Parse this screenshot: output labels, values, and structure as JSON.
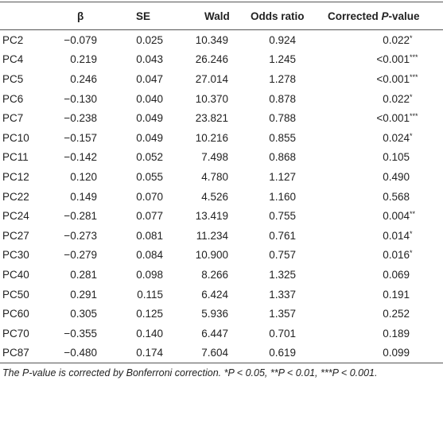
{
  "table": {
    "header": [
      "β",
      "SE",
      "Wald",
      "Odds ratio",
      [
        "Corrected ",
        "P",
        "-value"
      ]
    ],
    "rows": [
      [
        "PC2",
        "−0.079",
        "0.025",
        "10.349",
        "0.924",
        {
          "value": "0.022",
          "stars": "*"
        }
      ],
      [
        "PC4",
        "0.219",
        "0.043",
        "26.246",
        "1.245",
        {
          "value": "<0.001",
          "stars": "***"
        }
      ],
      [
        "PC5",
        "0.246",
        "0.047",
        "27.014",
        "1.278",
        {
          "value": "<0.001",
          "stars": "***"
        }
      ],
      [
        "PC6",
        "−0.130",
        "0.040",
        "10.370",
        "0.878",
        {
          "value": "0.022",
          "stars": "*"
        }
      ],
      [
        "PC7",
        "−0.238",
        "0.049",
        "23.821",
        "0.788",
        {
          "value": "<0.001",
          "stars": "***"
        }
      ],
      [
        "PC10",
        "−0.157",
        "0.049",
        "10.216",
        "0.855",
        {
          "value": "0.024",
          "stars": "*"
        }
      ],
      [
        "PC11",
        "−0.142",
        "0.052",
        "7.498",
        "0.868",
        {
          "value": "0.105"
        }
      ],
      [
        "PC12",
        "0.120",
        "0.055",
        "4.780",
        "1.127",
        {
          "value": "0.490"
        }
      ],
      [
        "PC22",
        "0.149",
        "0.070",
        "4.526",
        "1.160",
        {
          "value": "0.568"
        }
      ],
      [
        "PC24",
        "−0.281",
        "0.077",
        "13.419",
        "0.755",
        {
          "value": "0.004",
          "stars": "**"
        }
      ],
      [
        "PC27",
        "−0.273",
        "0.081",
        "11.234",
        "0.761",
        {
          "value": "0.014",
          "stars": "*"
        }
      ],
      [
        "PC30",
        "−0.279",
        "0.084",
        "10.900",
        "0.757",
        {
          "value": "0.016",
          "stars": "*"
        }
      ],
      [
        "PC40",
        "0.281",
        "0.098",
        "8.266",
        "1.325",
        {
          "value": "0.069"
        }
      ],
      [
        "PC50",
        "0.291",
        "0.115",
        "6.424",
        "1.337",
        {
          "value": "0.191"
        }
      ],
      [
        "PC60",
        "0.305",
        "0.125",
        "5.936",
        "1.357",
        {
          "value": "0.252"
        }
      ],
      [
        "PC70",
        "−0.355",
        "0.140",
        "6.447",
        "0.701",
        {
          "value": "0.189"
        }
      ],
      [
        "PC87",
        "−0.480",
        "0.174",
        "7.604",
        "0.619",
        {
          "value": "0.099"
        }
      ]
    ],
    "footnote": "The P-value is corrected by Bonferroni correction. *P < 0.05, **P < 0.01, ***P < 0.001."
  }
}
